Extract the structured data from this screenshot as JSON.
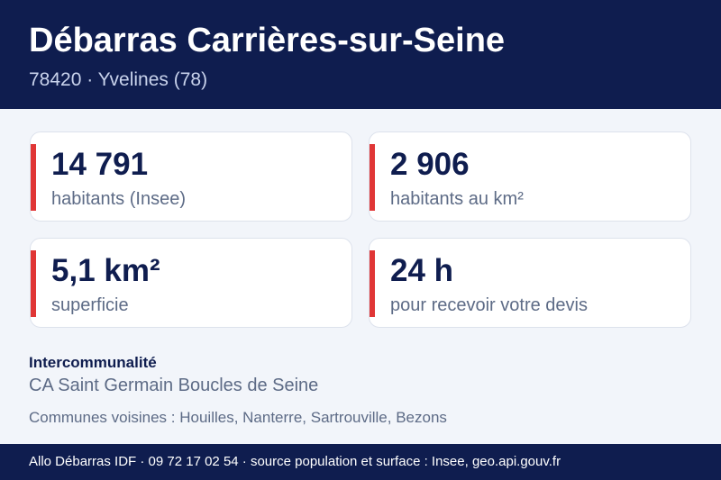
{
  "header": {
    "title": "Débarras Carrières-sur-Seine",
    "subtitle": "78420 · Yvelines (78)"
  },
  "stats": [
    {
      "value": "14 791",
      "label": "habitants (Insee)"
    },
    {
      "value": "2 906",
      "label": "habitants au km²"
    },
    {
      "value": "5,1 km²",
      "label": "superficie"
    },
    {
      "value": "24 h",
      "label": "pour recevoir votre devis"
    }
  ],
  "intercommunalite": {
    "heading": "Intercommunalité",
    "value": "CA Saint Germain Boucles de Seine"
  },
  "neighbours": "Communes voisines : Houilles, Nanterre, Sartrouville, Bezons",
  "footer": {
    "text": "Allo Débarras IDF · 09 72 17 02 54 · source population et surface : Insee, geo.api.gouv.fr"
  },
  "colors": {
    "navy": "#0f1d4f",
    "accent": "#e03636",
    "background": "#f2f5fa",
    "muted_text": "#5d6b86"
  }
}
